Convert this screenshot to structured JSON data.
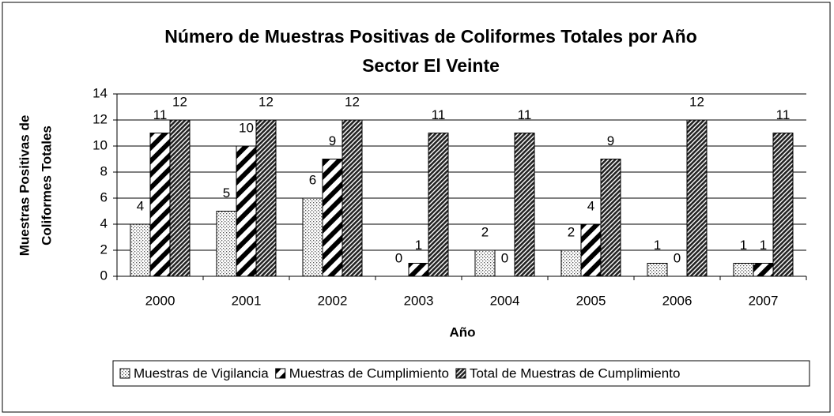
{
  "chart_data": {
    "type": "bar",
    "title": "Número de Muestras Positivas de Coliformes Totales por Año",
    "subtitle": "Sector El Veinte",
    "x_label": "Año",
    "y_label": [
      "Muestras Positivas de",
      "Coliformes Totales"
    ],
    "categories": [
      "2000",
      "2001",
      "2002",
      "2003",
      "2004",
      "2005",
      "2006",
      "2007"
    ],
    "series": [
      {
        "name": "Muestras de Vigilancia",
        "color": "#555555",
        "pattern": "dots",
        "values": [
          4,
          5,
          6,
          0,
          2,
          2,
          1,
          1
        ]
      },
      {
        "name": "Muestras de Cumplimiento",
        "color": "#000000",
        "pattern": "wide-stripes",
        "values": [
          11,
          10,
          9,
          1,
          0,
          4,
          0,
          1
        ]
      },
      {
        "name": "Total de Muestras de Cumplimiento",
        "color": "#222222",
        "pattern": "dense-stripes",
        "values": [
          12,
          12,
          12,
          11,
          11,
          9,
          12,
          11
        ]
      }
    ],
    "ylim": [
      0,
      14
    ],
    "yticks": [
      0,
      2,
      4,
      6,
      8,
      10,
      12,
      14
    ],
    "grid": true,
    "legend": "bottom"
  }
}
